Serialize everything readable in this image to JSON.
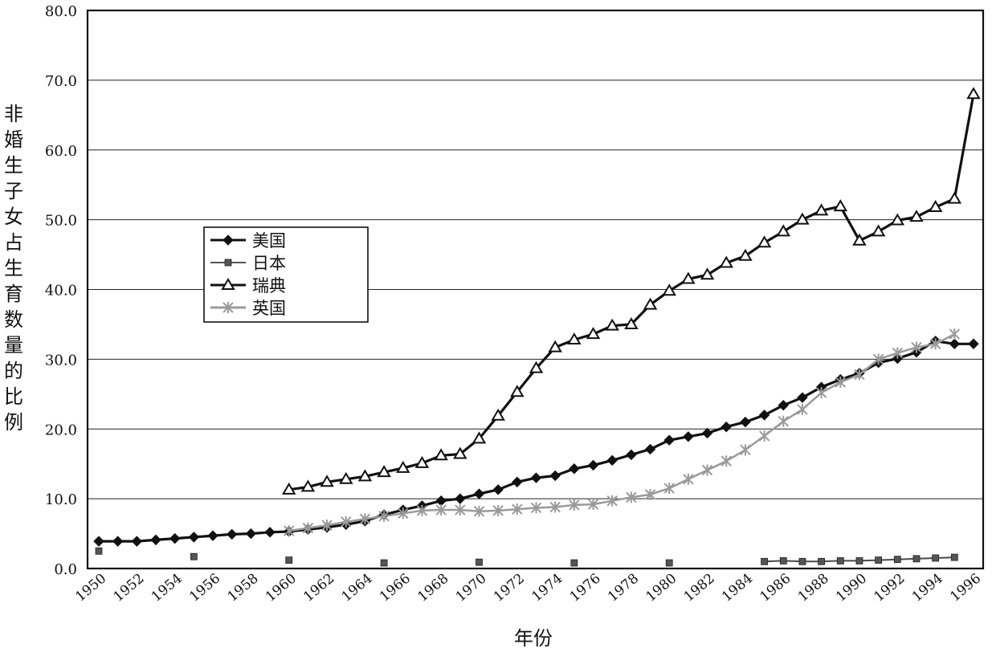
{
  "chart_data": {
    "type": "line",
    "title": "",
    "xlabel": "年份",
    "ylabel": "非婚生子女占生育数量的比例",
    "xlim": [
      1950,
      1996
    ],
    "ylim": [
      0,
      80
    ],
    "yticks": [
      "0.0",
      "10.0",
      "20.0",
      "30.0",
      "40.0",
      "50.0",
      "60.0",
      "70.0",
      "80.0"
    ],
    "xticks": [
      "1950",
      "1952",
      "1954",
      "1956",
      "1958",
      "1960",
      "1962",
      "1964",
      "1966",
      "1968",
      "1970",
      "1972",
      "1974",
      "1976",
      "1978",
      "1980",
      "1982",
      "1984",
      "1986",
      "1988",
      "1990",
      "1992",
      "1994",
      "1996"
    ],
    "grid": "horizontal",
    "legend_position": "left-middle",
    "series": [
      {
        "name": "美国",
        "marker": "diamond",
        "color": "#111111",
        "x": [
          1950,
          1951,
          1952,
          1953,
          1954,
          1955,
          1956,
          1957,
          1958,
          1959,
          1960,
          1961,
          1962,
          1963,
          1964,
          1965,
          1966,
          1967,
          1968,
          1969,
          1970,
          1971,
          1972,
          1973,
          1974,
          1975,
          1976,
          1977,
          1978,
          1979,
          1980,
          1981,
          1982,
          1983,
          1984,
          1985,
          1986,
          1987,
          1988,
          1989,
          1990,
          1991,
          1992,
          1993,
          1994,
          1995,
          1996
        ],
        "y": [
          3.9,
          3.9,
          3.9,
          4.1,
          4.3,
          4.5,
          4.7,
          4.9,
          5.0,
          5.2,
          5.3,
          5.6,
          5.9,
          6.3,
          6.8,
          7.7,
          8.4,
          9.0,
          9.7,
          10.0,
          10.7,
          11.3,
          12.4,
          13.0,
          13.3,
          14.3,
          14.8,
          15.5,
          16.3,
          17.1,
          18.4,
          18.9,
          19.4,
          20.3,
          21.0,
          22.0,
          23.4,
          24.5,
          26.0,
          27.1,
          28.0,
          29.5,
          30.1,
          31.0,
          32.6,
          32.2,
          32.2
        ]
      },
      {
        "name": "日本",
        "marker": "square",
        "color": "#4a4a4a",
        "x": [
          1950,
          1955,
          1960,
          1965,
          1970,
          1975,
          1980,
          1985,
          1986,
          1987,
          1988,
          1989,
          1990,
          1991,
          1992,
          1993,
          1994,
          1995
        ],
        "y": [
          2.5,
          1.7,
          1.2,
          0.8,
          0.9,
          0.8,
          0.8,
          1.0,
          1.1,
          1.0,
          1.0,
          1.1,
          1.1,
          1.2,
          1.3,
          1.4,
          1.5,
          1.6
        ]
      },
      {
        "name": "瑞典",
        "marker": "triangle",
        "color": "#111111",
        "x": [
          1960,
          1961,
          1962,
          1963,
          1964,
          1965,
          1966,
          1967,
          1968,
          1969,
          1970,
          1971,
          1972,
          1973,
          1974,
          1975,
          1976,
          1977,
          1978,
          1979,
          1980,
          1981,
          1982,
          1983,
          1984,
          1985,
          1986,
          1987,
          1988,
          1989,
          1990,
          1991,
          1992,
          1993,
          1994,
          1995,
          1996
        ],
        "y": [
          11.3,
          11.7,
          12.4,
          12.8,
          13.2,
          13.8,
          14.4,
          15.1,
          16.2,
          16.4,
          18.6,
          21.9,
          25.3,
          28.7,
          31.7,
          32.8,
          33.6,
          34.8,
          35.0,
          37.8,
          39.8,
          41.5,
          42.1,
          43.8,
          44.8,
          46.7,
          48.3,
          50.0,
          51.3,
          51.9,
          47.0,
          48.3,
          49.9,
          50.4,
          51.8,
          53.0,
          68.0
        ]
      },
      {
        "name": "英国",
        "marker": "star",
        "color": "#9a9a9a",
        "x": [
          1960,
          1961,
          1962,
          1963,
          1964,
          1965,
          1966,
          1967,
          1968,
          1969,
          1970,
          1971,
          1972,
          1973,
          1974,
          1975,
          1976,
          1977,
          1978,
          1979,
          1980,
          1981,
          1982,
          1983,
          1984,
          1985,
          1986,
          1987,
          1988,
          1989,
          1990,
          1991,
          1992,
          1993,
          1994,
          1995
        ],
        "y": [
          5.4,
          5.8,
          6.2,
          6.7,
          7.1,
          7.5,
          7.9,
          8.3,
          8.4,
          8.4,
          8.2,
          8.3,
          8.5,
          8.7,
          8.8,
          9.1,
          9.2,
          9.7,
          10.2,
          10.6,
          11.5,
          12.8,
          14.1,
          15.4,
          17.0,
          19.0,
          21.1,
          22.8,
          25.2,
          26.7,
          27.8,
          30.0,
          30.9,
          31.7,
          32.2,
          33.6
        ]
      }
    ]
  }
}
